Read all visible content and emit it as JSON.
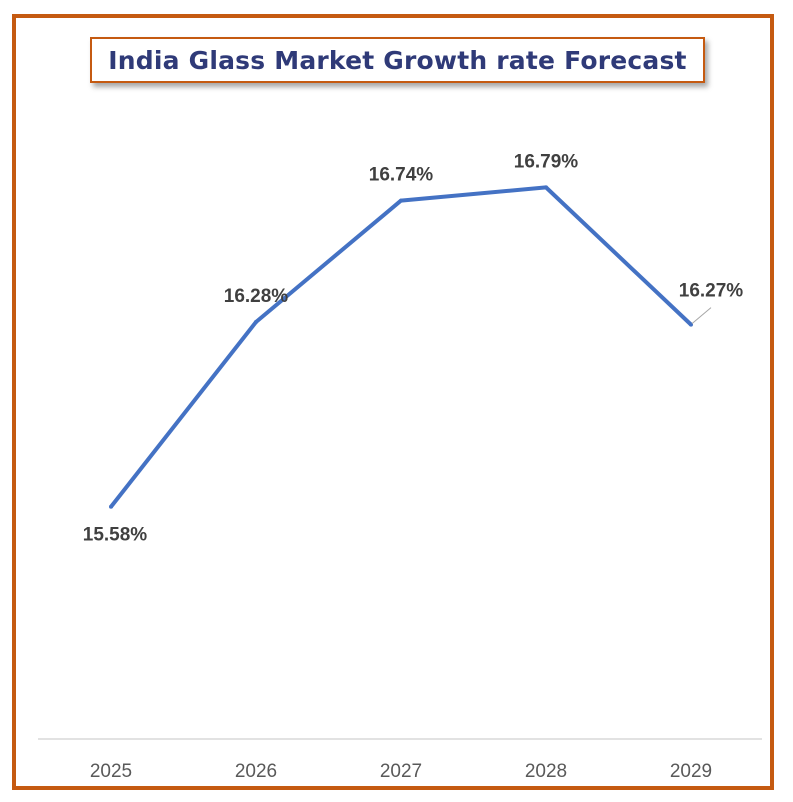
{
  "chart_data": {
    "type": "line",
    "title": "India Glass Market Growth rate Forecast",
    "categories": [
      "2025",
      "2026",
      "2027",
      "2028",
      "2029"
    ],
    "series": [
      {
        "name": "Growth rate",
        "values": [
          15.58,
          16.28,
          16.74,
          16.79,
          16.27
        ],
        "labels": [
          "15.58%",
          "16.28%",
          "16.74%",
          "16.79%",
          "16.27%"
        ]
      }
    ],
    "xlabel": "",
    "ylabel": "",
    "ylim": [
      14.7,
      17.5
    ],
    "grid": false,
    "legend": "none"
  },
  "colors": {
    "line": "#4472c4",
    "frame": "#c55a11",
    "title": "#2f3a78",
    "label": "#404040",
    "axis": "#d9d9d9"
  }
}
